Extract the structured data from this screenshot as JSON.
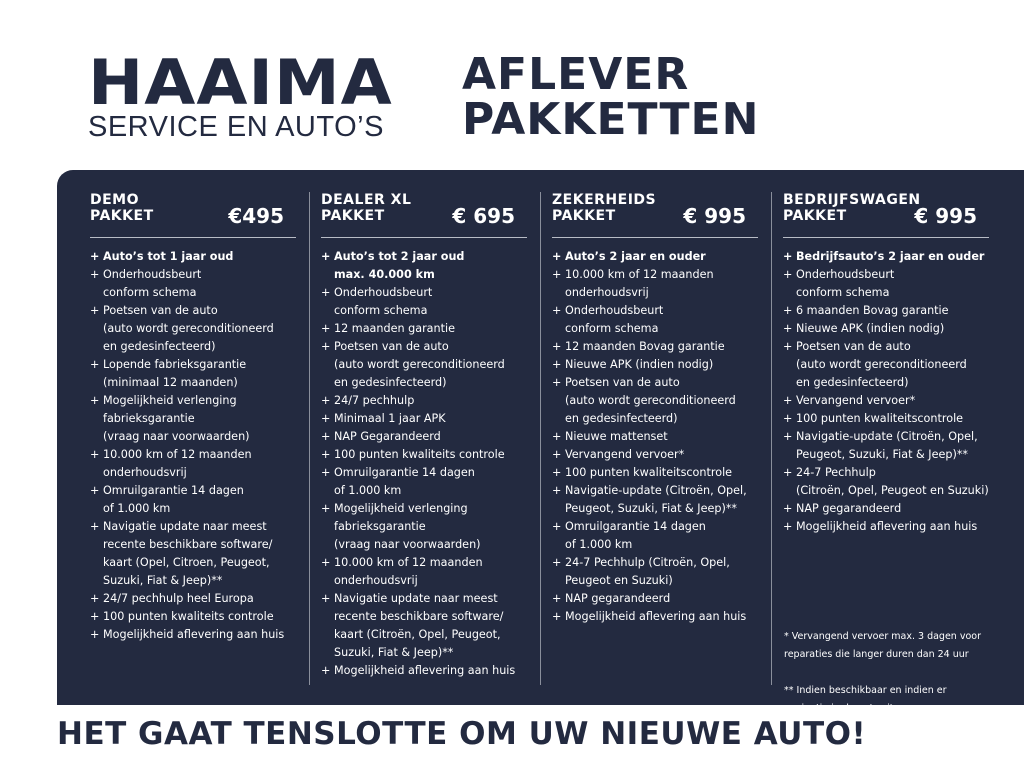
{
  "logo": {
    "name": "HAAIMA",
    "subtitle": "SERVICE EN AUTO’S"
  },
  "title": {
    "line1": "AFLEVER",
    "line2": "PAKKETTEN"
  },
  "colors": {
    "navy": "#232a40",
    "text_on_panel": "#ffffff"
  },
  "packages": [
    {
      "name1": "DEMO",
      "name2": "PAKKET",
      "price": "€495",
      "items": [
        "Auto’s tot 1 jaar oud",
        "Onderhoudsbeurt\nconform schema",
        "Poetsen van de auto\n(auto wordt gereconditioneerd\nen gedesinfecteerd)",
        "Lopende fabrieksgarantie\n(minimaal 12 maanden)",
        "Mogelijkheid verlenging\nfabrieksgarantie\n(vraag naar voorwaarden)",
        "10.000 km of 12 maanden\nonderhoudsvrij",
        "Omruilgarantie 14 dagen\nof 1.000 km",
        "Navigatie update naar meest\nrecente beschikbare software/\nkaart (Opel, Citroen,  Peugeot,\nSuzuki, Fiat & Jeep)**",
        "24/7 pechhulp heel Europa",
        "100 punten kwaliteits controle",
        "Mogelijkheid aflevering aan huis"
      ]
    },
    {
      "name1": "DEALER XL",
      "name2": "PAKKET",
      "price": "€ 695",
      "items": [
        "Auto’s tot 2 jaar oud\nmax. 40.000 km",
        "Onderhoudsbeurt\nconform schema",
        "12 maanden garantie",
        "Poetsen van de auto\n(auto wordt gereconditioneerd\nen gedesinfecteerd)",
        "24/7 pechhulp",
        "Minimaal 1 jaar APK",
        "NAP Gegarandeerd",
        "100 punten kwaliteits controle",
        "Omruilgarantie 14 dagen\nof 1.000 km",
        "Mogelijkheid verlenging\nfabrieksgarantie\n(vraag naar voorwaarden)",
        "10.000 km of 12 maanden\nonderhoudsvrij",
        "Navigatie update naar meest\nrecente beschikbare software/\nkaart (Citroën, Opel, Peugeot,\nSuzuki, Fiat & Jeep)**",
        "Mogelijkheid aflevering aan huis"
      ]
    },
    {
      "name1": "ZEKERHEIDS",
      "name2": "PAKKET",
      "price": "€ 995",
      "items": [
        "Auto’s 2 jaar en ouder",
        "10.000 km of 12 maanden\nonderhoudsvrij",
        "Onderhoudsbeurt\nconform schema",
        "12 maanden Bovag garantie",
        "Nieuwe APK (indien nodig)",
        "Poetsen van de auto\n(auto wordt gereconditioneerd\nen gedesinfecteerd)",
        "Nieuwe mattenset",
        "Vervangend vervoer*",
        "100 punten kwaliteitscontrole",
        "Navigatie-update (Citroën, Opel,\nPeugeot, Suzuki, Fiat & Jeep)**",
        "Omruilgarantie 14 dagen\nof 1.000 km",
        "24-7 Pechhulp (Citroën, Opel,\nPeugeot en Suzuki)",
        "NAP gegarandeerd",
        "Mogelijkheid aflevering aan huis"
      ]
    },
    {
      "name1": "BEDRIJFSWAGEN",
      "name2": "PAKKET",
      "price": "€ 995",
      "items": [
        "Bedrijfsauto’s 2 jaar en ouder",
        "Onderhoudsbeurt\nconform schema",
        "6 maanden Bovag garantie",
        "Nieuwe APK (indien nodig)",
        "Poetsen van de auto\n(auto wordt gereconditioneerd\nen gedesinfecteerd)",
        "Vervangend vervoer*",
        "100 punten kwaliteitscontrole",
        "Navigatie-update (Citroën, Opel,\nPeugeot, Suzuki, Fiat & Jeep)**",
        "24-7 Pechhulp\n(Citroën, Opel, Peugeot en Suzuki)",
        "NAP gegarandeerd",
        "Mogelijkheid aflevering aan huis"
      ]
    }
  ],
  "footnotes": [
    "* Vervangend vervoer max. 3 dagen voor\n   reparaties die langer duren dan 24 uur",
    "** Indien beschikbaar en indien er\n     navigatie in de auto zit."
  ],
  "tagline": "HET GAAT TENSLOTTE OM UW NIEUWE AUTO!"
}
